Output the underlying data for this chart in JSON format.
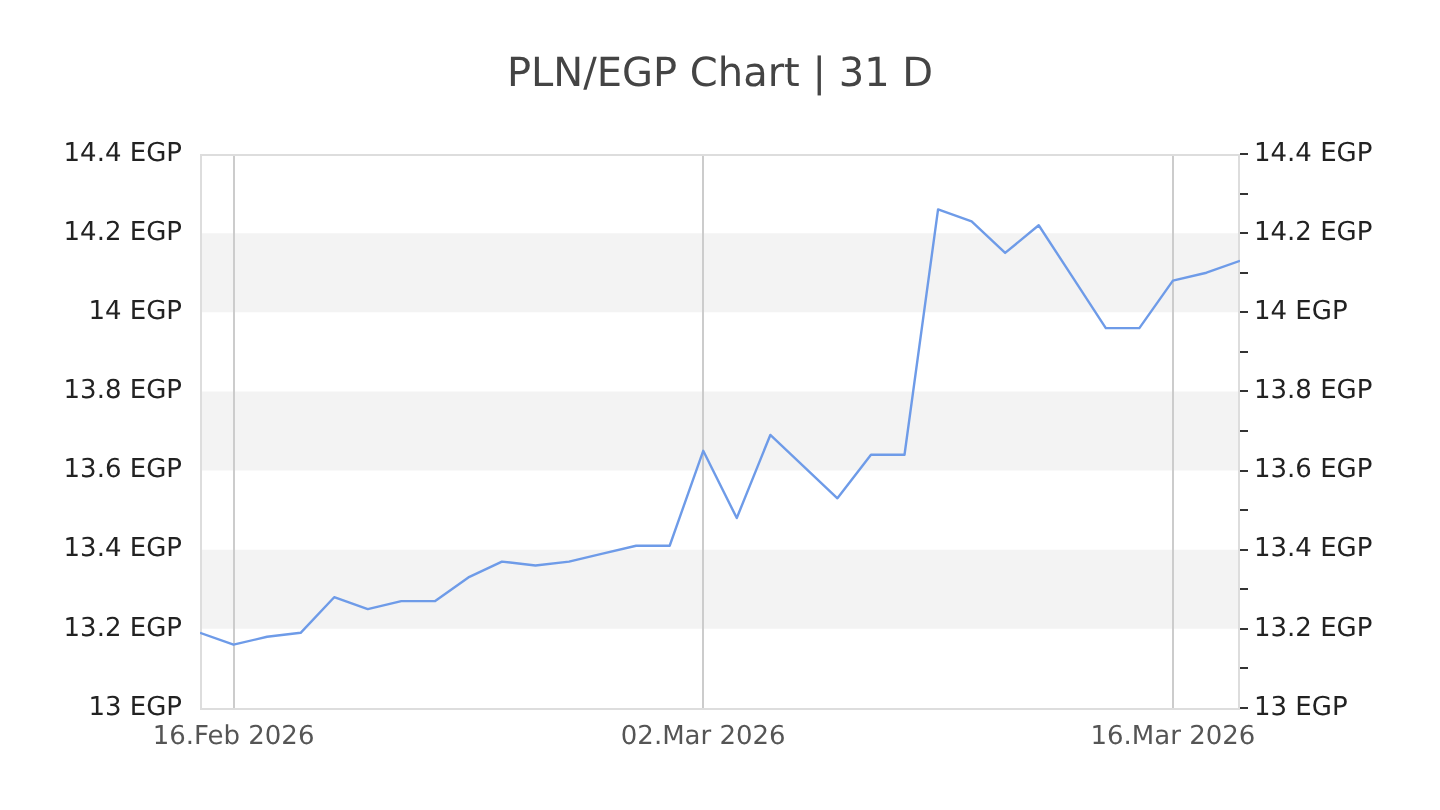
{
  "chart_data": {
    "type": "line",
    "title": "PLN/EGP Chart | 31 D",
    "x": [
      "2026-02-15",
      "2026-02-16",
      "2026-02-17",
      "2026-02-18",
      "2026-02-19",
      "2026-02-20",
      "2026-02-21",
      "2026-02-22",
      "2026-02-23",
      "2026-02-24",
      "2026-02-25",
      "2026-02-26",
      "2026-02-27",
      "2026-02-28",
      "2026-03-01",
      "2026-03-02",
      "2026-03-03",
      "2026-03-04",
      "2026-03-05",
      "2026-03-06",
      "2026-03-07",
      "2026-03-08",
      "2026-03-09",
      "2026-03-10",
      "2026-03-11",
      "2026-03-12",
      "2026-03-13",
      "2026-03-14",
      "2026-03-15",
      "2026-03-16",
      "2026-03-17",
      "2026-03-18"
    ],
    "series": [
      {
        "color": "#6e9be8",
        "values": [
          13.19,
          13.16,
          13.18,
          13.19,
          13.28,
          13.25,
          13.27,
          13.27,
          13.33,
          13.37,
          13.36,
          13.37,
          13.39,
          13.41,
          13.41,
          13.65,
          13.48,
          13.69,
          13.61,
          13.53,
          13.64,
          13.64,
          14.26,
          14.23,
          14.15,
          14.22,
          14.09,
          13.96,
          13.96,
          14.08,
          14.1,
          14.13
        ]
      }
    ],
    "xlim": [
      "2026-02-15",
      "2026-03-18"
    ],
    "xticks": [
      {
        "value": "2026-02-16",
        "label": "16.Feb 2026"
      },
      {
        "value": "2026-03-02",
        "label": "02.Mar 2026"
      },
      {
        "value": "2026-03-16",
        "label": "16.Mar 2026"
      }
    ],
    "ylim": [
      13,
      14.4
    ],
    "yticks": [
      {
        "value": 13,
        "label": "13 EGP"
      },
      {
        "value": 13.2,
        "label": "13.2 EGP"
      },
      {
        "value": 13.4,
        "label": "13.4 EGP"
      },
      {
        "value": 13.6,
        "label": "13.6 EGP"
      },
      {
        "value": 13.8,
        "label": "13.8 EGP"
      },
      {
        "value": 14,
        "label": "14 EGP"
      },
      {
        "value": 14.2,
        "label": "14.2 EGP"
      },
      {
        "value": 14.4,
        "label": "14.4 EGP"
      }
    ],
    "y2lim": [
      13,
      14.4
    ],
    "y2ticks": [
      {
        "value": 13,
        "label": "13 EGP"
      },
      {
        "value": 13.1,
        "label": null
      },
      {
        "value": 13.2,
        "label": "13.2 EGP"
      },
      {
        "value": 13.3,
        "label": null
      },
      {
        "value": 13.4,
        "label": "13.4 EGP"
      },
      {
        "value": 13.5,
        "label": null
      },
      {
        "value": 13.6,
        "label": "13.6 EGP"
      },
      {
        "value": 13.7,
        "label": null
      },
      {
        "value": 13.8,
        "label": "13.8 EGP"
      },
      {
        "value": 13.9,
        "label": null
      },
      {
        "value": 14,
        "label": "14 EGP"
      },
      {
        "value": 14.1,
        "label": null
      },
      {
        "value": 14.2,
        "label": "14.2 EGP"
      },
      {
        "value": 14.3,
        "label": null
      },
      {
        "value": 14.4,
        "label": "14.4 EGP"
      }
    ],
    "grid": "x",
    "bands": [
      {
        "axis": "y",
        "from": 13.2,
        "to": 13.4,
        "color": "#f3f3f3"
      },
      {
        "axis": "y",
        "from": 13.6,
        "to": 13.8,
        "color": "#f3f3f3"
      },
      {
        "axis": "y",
        "from": 14.0,
        "to": 14.2,
        "color": "#f3f3f3"
      }
    ],
    "legend": false,
    "marker": "none",
    "line_style": "solid"
  }
}
